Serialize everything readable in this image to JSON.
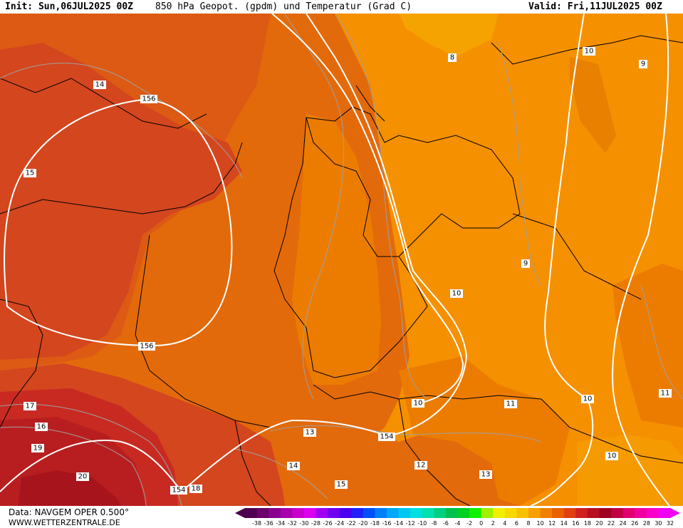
{
  "header": {
    "init": "Init: Sun,06JUL2025 00Z",
    "title": "850 hPa Geopot. (gpdm) und Temperatur (Grad C)",
    "valid": "Valid: Fri,11JUL2025 00Z"
  },
  "footer": {
    "source": "Data: NAVGEM OPER 0.500°",
    "site": "WWW.WETTERZENTRALE.DE"
  },
  "colors": {
    "dark_red": "#a8141c",
    "red1": "#b81e20",
    "red2": "#c82a22",
    "red3": "#d4461e",
    "orange_red": "#dd5a14",
    "orange_dark": "#e36a0a",
    "orange": "#ec7c00",
    "orange_light": "#f59000",
    "amber": "#f5a300",
    "geopot_line": "#ffffff",
    "temp_line": "#a0a0a0",
    "border_line": "#000000"
  },
  "geopotential_labels": [
    "156",
    "156",
    "154",
    "154",
    "10",
    "10",
    "10",
    "10",
    "10"
  ],
  "temperature_labels": [
    "8",
    "9",
    "9",
    "11",
    "11",
    "12",
    "13",
    "13",
    "14",
    "14",
    "15",
    "15",
    "16",
    "17",
    "18",
    "19",
    "20"
  ],
  "legend": {
    "values": [
      "-38",
      "-36",
      "-34",
      "-32",
      "-30",
      "-28",
      "-26",
      "-24",
      "-22",
      "-20",
      "-18",
      "-16",
      "-14",
      "-12",
      "-10",
      "-8",
      "-6",
      "-4",
      "-2",
      "0",
      "2",
      "4",
      "6",
      "8",
      "10",
      "12",
      "14",
      "16",
      "18",
      "20",
      "22",
      "24",
      "26",
      "28",
      "30",
      "32"
    ],
    "colors": [
      "#500050",
      "#6c006c",
      "#88008c",
      "#a800ac",
      "#c800cc",
      "#dc00f0",
      "#a000f0",
      "#7000f0",
      "#4800f0",
      "#2020f8",
      "#0050f8",
      "#0080f8",
      "#00a8f8",
      "#00c8f0",
      "#00e0e0",
      "#00e0b0",
      "#00d080",
      "#00c050",
      "#00d020",
      "#10f000",
      "#a0f000",
      "#f0f000",
      "#f8d800",
      "#f8c000",
      "#f8a000",
      "#f08000",
      "#e86000",
      "#e04010",
      "#d02020",
      "#b81020",
      "#a00020",
      "#c00040",
      "#e00070",
      "#f000a0",
      "#f800c8",
      "#f000f0"
    ]
  }
}
